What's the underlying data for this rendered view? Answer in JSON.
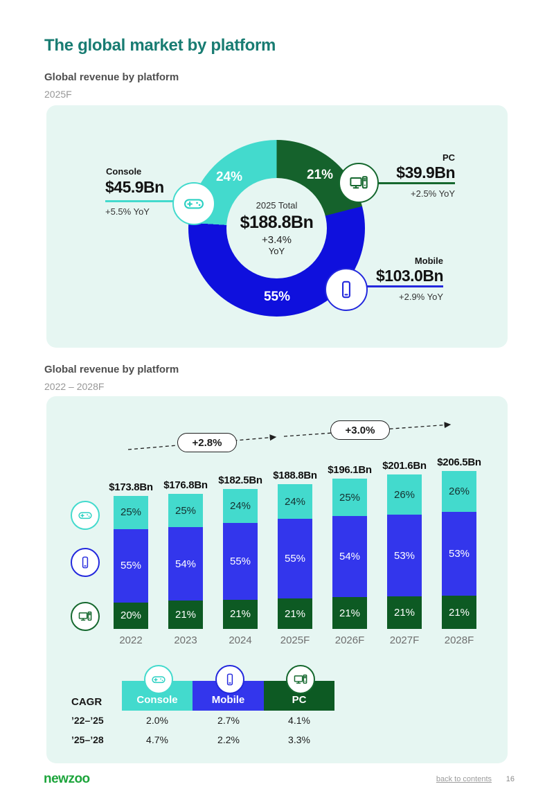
{
  "page_title": "The global market by platform",
  "sections": [
    {
      "heading": "Global revenue by platform",
      "period": "2025F"
    },
    {
      "heading": "Global revenue by platform",
      "period": "2022 – 2028F"
    }
  ],
  "colors": {
    "panel_bg": "#e6f6f2",
    "title_teal": "#187c72",
    "console_turquoise": "#43dacd",
    "mobile_blue_donut": "#0f10dd",
    "mobile_blue_bars": "#3336ec",
    "pc_green_donut": "#15622c",
    "pc_green_bars": "#0d5a23",
    "newzoo_green": "#1da53c"
  },
  "chart_data": [
    {
      "type": "pie",
      "title": "Global revenue by platform 2025F",
      "donut": true,
      "start_angle_deg": 0,
      "clockwise": true,
      "center": {
        "label": "2025 Total",
        "value": "$188.8Bn",
        "yoy": "+3.4%",
        "yoy_unit": "YoY"
      },
      "slices": [
        {
          "name": "PC",
          "pct": 21,
          "pct_label": "21%",
          "value": "$39.9Bn",
          "yoy": "+2.5% YoY",
          "color": "#15622c",
          "icon": "pc-icon"
        },
        {
          "name": "Mobile",
          "pct": 55,
          "pct_label": "55%",
          "value": "$103.0Bn",
          "yoy": "+2.9% YoY",
          "color": "#0f10dd",
          "icon": "mobile-icon"
        },
        {
          "name": "Console",
          "pct": 24,
          "pct_label": "24%",
          "value": "$45.9Bn",
          "yoy": "+5.5% YoY",
          "color": "#43dacd",
          "icon": "gamepad-icon"
        }
      ]
    },
    {
      "type": "bar",
      "stacked": true,
      "unit": "$Bn",
      "categories": [
        "2022",
        "2023",
        "2024",
        "2025F",
        "2026F",
        "2027F",
        "2028F"
      ],
      "totals_bn": [
        173.8,
        176.8,
        182.5,
        188.8,
        196.1,
        201.6,
        206.5
      ],
      "total_labels": [
        "$173.8Bn",
        "$176.8Bn",
        "$182.5Bn",
        "$188.8Bn",
        "$196.1Bn",
        "$201.6Bn",
        "$206.5Bn"
      ],
      "series": [
        {
          "name": "Console",
          "icon": "gamepad-icon",
          "color": "#43dacd",
          "label_color": "#14302f",
          "values": [
            25,
            25,
            24,
            24,
            25,
            26,
            26
          ]
        },
        {
          "name": "Mobile",
          "icon": "mobile-icon",
          "color": "#3336ec",
          "label_color": "#ffffff",
          "values": [
            55,
            54,
            55,
            55,
            54,
            53,
            53
          ]
        },
        {
          "name": "PC",
          "icon": "pc-icon",
          "color": "#0d5a23",
          "label_color": "#ffffff",
          "values": [
            20,
            21,
            21,
            21,
            21,
            21,
            21
          ]
        }
      ],
      "growth_annotations": [
        "+2.8%",
        "+3.0%"
      ]
    },
    {
      "type": "table",
      "title": "CAGR",
      "columns": [
        {
          "name": "Console",
          "icon": "gamepad-icon",
          "color": "#43dacd"
        },
        {
          "name": "Mobile",
          "icon": "mobile-icon",
          "color": "#3336ec"
        },
        {
          "name": "PC",
          "icon": "pc-icon",
          "color": "#0d5a23"
        }
      ],
      "rows": [
        {
          "label": "’22–’25",
          "values": [
            "2.0%",
            "2.7%",
            "4.1%"
          ]
        },
        {
          "label": "’25–’28",
          "values": [
            "4.7%",
            "2.2%",
            "3.3%"
          ]
        }
      ]
    }
  ],
  "footer": {
    "logo": "newzoo",
    "back_link": "back to contents",
    "page_number": "16"
  }
}
